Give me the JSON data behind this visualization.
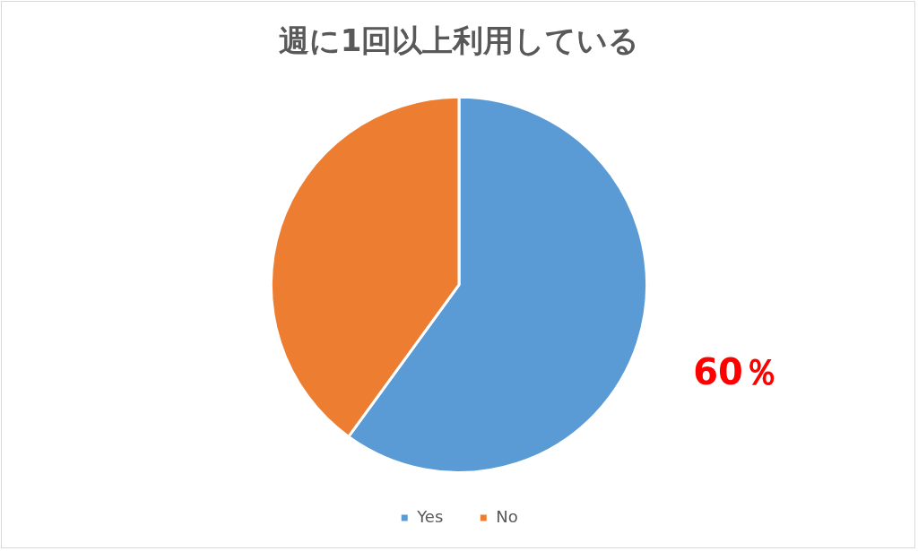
{
  "chart_data": {
    "type": "pie",
    "title": "週に1回以上利用している",
    "categories": [
      "Yes",
      "No"
    ],
    "values": [
      60,
      40
    ],
    "colors": [
      "#5b9bd5",
      "#ed7d31"
    ],
    "value_labels": [
      "60％",
      null
    ],
    "legend": "bottom"
  }
}
